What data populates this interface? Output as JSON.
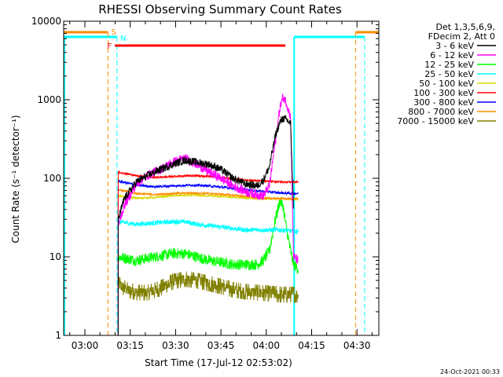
{
  "chart_data": {
    "type": "line",
    "title": "RHESSI Observing Summary Count Rates",
    "xlabel": "Start Time (17-Jul-12 02:53:02)",
    "ylabel": "Count Rate (s⁻¹ detector⁻¹)",
    "yscale": "log",
    "ylim": [
      1,
      10000
    ],
    "xlim_minutes": [
      -0.05,
      104.2
    ],
    "x_ticks": [
      {
        "label": "03:00",
        "t": 6.97
      },
      {
        "label": "03:15",
        "t": 21.97
      },
      {
        "label": "03:30",
        "t": 36.97
      },
      {
        "label": "03:45",
        "t": 51.97
      },
      {
        "label": "04:00",
        "t": 66.97
      },
      {
        "label": "04:15",
        "t": 81.97
      },
      {
        "label": "04:30",
        "t": 96.97
      }
    ],
    "y_ticks": [
      {
        "label": "1",
        "v": 1
      },
      {
        "label": "10",
        "v": 10
      },
      {
        "label": "100",
        "v": 100
      },
      {
        "label": "1000",
        "v": 1000
      },
      {
        "label": "10000",
        "v": 10000
      }
    ],
    "legend_header": [
      "Det 1,3,5,6,9,",
      "FDecim 2, Att 0"
    ],
    "series": [
      {
        "name": "3 - 6 keV",
        "color": "#000000",
        "t": [
          18,
          20,
          24,
          28,
          32,
          36,
          40,
          44,
          48,
          52,
          56,
          60,
          64,
          66,
          68,
          70,
          71.5,
          72.5,
          73.5,
          75,
          76
        ],
        "values": [
          30,
          55,
          90,
          110,
          130,
          150,
          170,
          160,
          150,
          130,
          100,
          85,
          80,
          95,
          140,
          350,
          520,
          580,
          560,
          500,
          40
        ]
      },
      {
        "name": "6 - 12 keV",
        "color": "#ff00ff",
        "t": [
          18,
          20,
          24,
          28,
          32,
          36,
          40,
          44,
          48,
          52,
          56,
          60,
          64,
          66,
          68,
          70,
          71.5,
          72.5,
          73.5,
          75,
          76,
          77.5
        ],
        "values": [
          25,
          45,
          85,
          110,
          130,
          160,
          180,
          150,
          120,
          100,
          80,
          68,
          62,
          60,
          80,
          300,
          800,
          1080,
          950,
          600,
          10,
          9
        ]
      },
      {
        "name": "12 - 25 keV",
        "color": "#00ff00",
        "t": [
          18,
          24,
          30,
          36,
          40,
          44,
          48,
          52,
          56,
          60,
          64,
          66,
          68,
          70,
          71.5,
          72.5,
          73.5,
          75,
          76,
          77.5
        ],
        "values": [
          10,
          9,
          10,
          11,
          11,
          10,
          9,
          8.5,
          8,
          8,
          8,
          9,
          12,
          30,
          52,
          45,
          25,
          12,
          8,
          7
        ]
      },
      {
        "name": "25 - 50 keV",
        "color": "#00ffff",
        "t": [
          18,
          24,
          30,
          36,
          40,
          44,
          48,
          52,
          56,
          60,
          64,
          68,
          72,
          76,
          77.5
        ],
        "values": [
          28,
          26,
          27,
          28,
          28,
          26,
          25,
          24,
          23,
          22,
          22,
          22,
          22,
          21,
          21
        ]
      },
      {
        "name": "50 - 100 keV",
        "color": "#d9d900",
        "t": [
          18,
          24,
          30,
          36,
          42,
          48,
          54,
          60,
          66,
          72,
          77.5
        ],
        "values": [
          60,
          56,
          57,
          60,
          61,
          60,
          58,
          56,
          55,
          55,
          54
        ]
      },
      {
        "name": "100 - 300 keV",
        "color": "#ff0000",
        "t": [
          18,
          24,
          30,
          36,
          42,
          48,
          54,
          60,
          66,
          72,
          77.5
        ],
        "values": [
          120,
          108,
          103,
          105,
          108,
          106,
          100,
          95,
          92,
          90,
          90
        ]
      },
      {
        "name": "300 - 800 keV",
        "color": "#0000ff",
        "t": [
          18,
          24,
          30,
          36,
          42,
          48,
          54,
          60,
          66,
          72,
          77.5
        ],
        "values": [
          92,
          82,
          78,
          80,
          82,
          80,
          76,
          72,
          68,
          65,
          64
        ]
      },
      {
        "name": "800 - 7000 keV",
        "color": "#ff8c00",
        "t": [
          18,
          24,
          30,
          36,
          42,
          48,
          54,
          60,
          66,
          72,
          77.5
        ],
        "values": [
          72,
          64,
          62,
          64,
          65,
          64,
          62,
          59,
          56,
          55,
          55
        ]
      },
      {
        "name": "7000 - 15000 keV",
        "color": "#808000",
        "t": [
          18,
          21,
          24,
          28,
          32,
          36,
          40,
          44,
          48,
          52,
          56,
          60,
          64,
          68,
          72,
          76,
          77.5
        ],
        "values": [
          4.5,
          3.8,
          3.5,
          3.5,
          4,
          4.8,
          5.2,
          5,
          4.6,
          4.2,
          3.8,
          3.6,
          3.5,
          3.4,
          3.3,
          3.3,
          3.3
        ]
      }
    ],
    "flag_markers": [
      {
        "label": "S",
        "color": "#ff8c00",
        "t": 14.6
      },
      {
        "label": "N",
        "color": "#00ffff",
        "t": 17.6
      },
      {
        "label": "F",
        "color": "#ff0000",
        "t": 16.9
      }
    ],
    "footer_date": "24-Oct-2021 00:33"
  }
}
